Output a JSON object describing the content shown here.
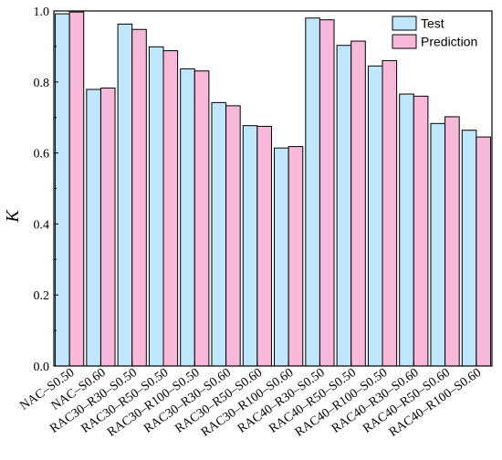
{
  "chart_data": {
    "type": "bar",
    "ylabel": "K",
    "xlabel": "",
    "ylim": [
      0.0,
      1.0
    ],
    "yticks": [
      "0.0",
      "0.2",
      "0.4",
      "0.6",
      "0.8",
      "1.0"
    ],
    "grid": false,
    "legend_position": "top-right",
    "categories": [
      "NAC–S0.50",
      "NAC–S0.60",
      "RAC30–R30–S0.50",
      "RAC30–R50–S0.50",
      "RAC30–R100–S0.50",
      "RAC30–R30–S0.60",
      "RAC30–R50–S0.60",
      "RAC30–R100–S0.60",
      "RAC40–R30–S0.50",
      "RAC40–R50–S0.50",
      "RAC40–R100–S0.50",
      "RAC40–R30–S0.60",
      "RAC40–R50–S0.60",
      "RAC40–R100–S0.60"
    ],
    "series": [
      {
        "name": "Test",
        "color": "#bfe6fa",
        "values": [
          0.992,
          0.779,
          0.963,
          0.899,
          0.837,
          0.742,
          0.677,
          0.614,
          0.98,
          0.903,
          0.845,
          0.766,
          0.683,
          0.664
        ]
      },
      {
        "name": "Prediction",
        "color": "#f7b8da",
        "values": [
          0.997,
          0.783,
          0.948,
          0.888,
          0.831,
          0.733,
          0.675,
          0.618,
          0.975,
          0.915,
          0.86,
          0.76,
          0.702,
          0.645
        ]
      }
    ]
  }
}
